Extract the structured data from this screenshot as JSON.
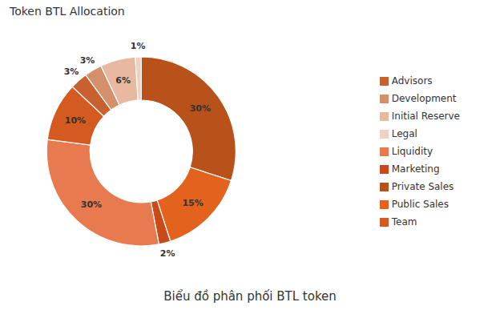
{
  "chart_data": {
    "type": "pie",
    "title": "Token BTL Allocation",
    "subtitle": "Biểu đồ phân phối BTL token",
    "categories": [
      "Private Sales",
      "Public Sales",
      "Marketing",
      "Liquidity",
      "Team",
      "Advisors",
      "Development",
      "Initial Reserve",
      "Legal"
    ],
    "values": [
      30,
      15,
      2,
      30,
      10,
      3,
      3,
      6,
      1
    ],
    "value_labels": [
      "30%",
      "15%",
      "2%",
      "30%",
      "10%",
      "3%",
      "3%",
      "6%",
      "1%"
    ],
    "colors": [
      "#B8521A",
      "#E2621E",
      "#C94A18",
      "#E87A50",
      "#D45A20",
      "#C86030",
      "#D4906A",
      "#E8B8A0",
      "#F0D0C0"
    ],
    "data_labels": true,
    "legend": "right"
  }
}
